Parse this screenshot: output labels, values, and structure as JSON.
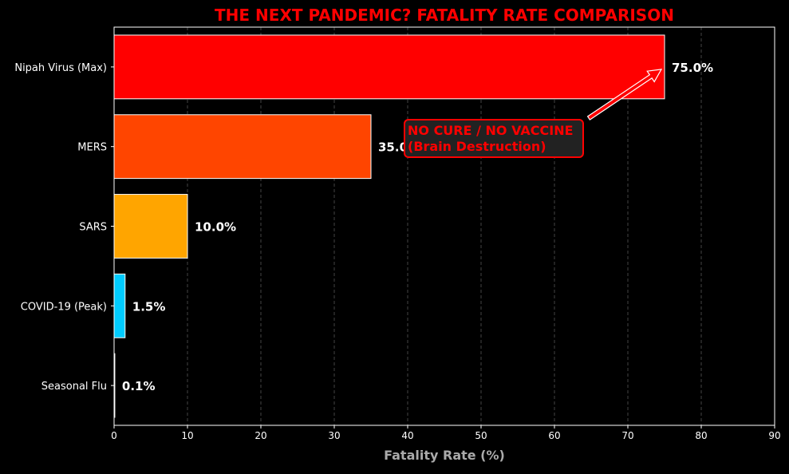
{
  "chart_data": {
    "type": "bar",
    "orientation": "horizontal",
    "title": "THE NEXT PANDEMIC? FATALITY RATE COMPARISON",
    "xlabel": "Fatality Rate (%)",
    "ylabel": "",
    "xlim": [
      0,
      90
    ],
    "xticks": [
      0,
      10,
      20,
      30,
      40,
      50,
      60,
      70,
      80,
      90
    ],
    "grid": "vertical dashed",
    "categories": [
      "Nipah Virus (Max)",
      "MERS",
      "SARS",
      "COVID-19 (Peak)",
      "Seasonal Flu"
    ],
    "values": [
      75.0,
      35.0,
      10.0,
      1.5,
      0.1
    ],
    "value_labels": [
      "75.0%",
      "35.0%",
      "10.0%",
      "1.5%",
      "0.1%"
    ],
    "colors": [
      "#ff0000",
      "#ff4500",
      "#ffa500",
      "#00ccff",
      "#808080"
    ],
    "annotation": {
      "lines": [
        "NO CURE / NO VACCINE",
        "(Brain Destruction)"
      ],
      "target": {
        "category": "Nipah Virus (Max)",
        "value": 75.0
      },
      "text_color": "#ff0000",
      "box_color": "#222222"
    },
    "background": "#000000",
    "title_color": "#ff0000"
  }
}
